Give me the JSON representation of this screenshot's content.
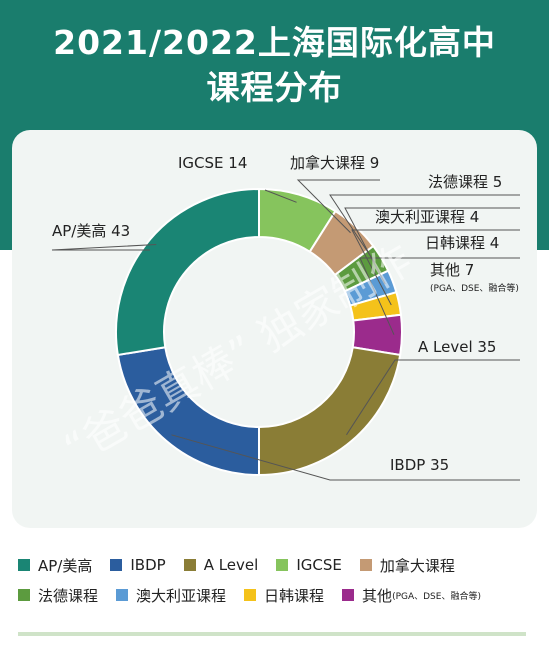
{
  "title_line1": "2021/2022上海国际化高中",
  "title_line2": "课程分布",
  "watermark": "“爸爸真棒” 独家制作",
  "chart_data": {
    "type": "pie",
    "title": "2021/2022上海国际化高中课程分布",
    "donut": true,
    "slices": [
      {
        "label": "IGCSE",
        "value": 14,
        "color": "#86c45d",
        "callout": "IGCSE  14"
      },
      {
        "label": "加拿大课程",
        "value": 9,
        "color": "#c49a74",
        "callout": "加拿大课程  9"
      },
      {
        "label": "法德课程",
        "value": 5,
        "color": "#5c9b3f",
        "callout": "法德课程  5"
      },
      {
        "label": "澳大利亚课程",
        "value": 4,
        "color": "#5b9bd5",
        "callout": "澳大利亚课程  4"
      },
      {
        "label": "日韩课程",
        "value": 4,
        "color": "#f4c21a",
        "callout": "日韩课程  4"
      },
      {
        "label": "其他",
        "value": 7,
        "color": "#9b2b8c",
        "callout": "其他  7",
        "note": "(PGA、DSE、融合等)"
      },
      {
        "label": "A Level",
        "value": 35,
        "color": "#8a7d36",
        "callout": "A Level  35"
      },
      {
        "label": "IBDP",
        "value": 35,
        "color": "#2b5d9e",
        "callout": "IBDP  35"
      },
      {
        "label": "AP/美高",
        "value": 43,
        "color": "#1a8574",
        "callout": "AP/美高  43"
      }
    ],
    "legend": [
      [
        {
          "label": "AP/美高",
          "color": "#1a8574"
        },
        {
          "label": "IBDP",
          "color": "#2b5d9e"
        },
        {
          "label": "A Level",
          "color": "#8a7d36"
        },
        {
          "label": "IGCSE",
          "color": "#86c45d"
        },
        {
          "label": "加拿大课程",
          "color": "#c49a74"
        }
      ],
      [
        {
          "label": "法德课程",
          "color": "#5c9b3f"
        },
        {
          "label": "澳大利亚课程",
          "color": "#5b9bd5"
        },
        {
          "label": "日韩课程",
          "color": "#f4c21a"
        },
        {
          "label": "其他",
          "color": "#9b2b8c",
          "note": "(PGA、DSE、融合等)"
        }
      ]
    ],
    "legend_position": "bottom"
  }
}
